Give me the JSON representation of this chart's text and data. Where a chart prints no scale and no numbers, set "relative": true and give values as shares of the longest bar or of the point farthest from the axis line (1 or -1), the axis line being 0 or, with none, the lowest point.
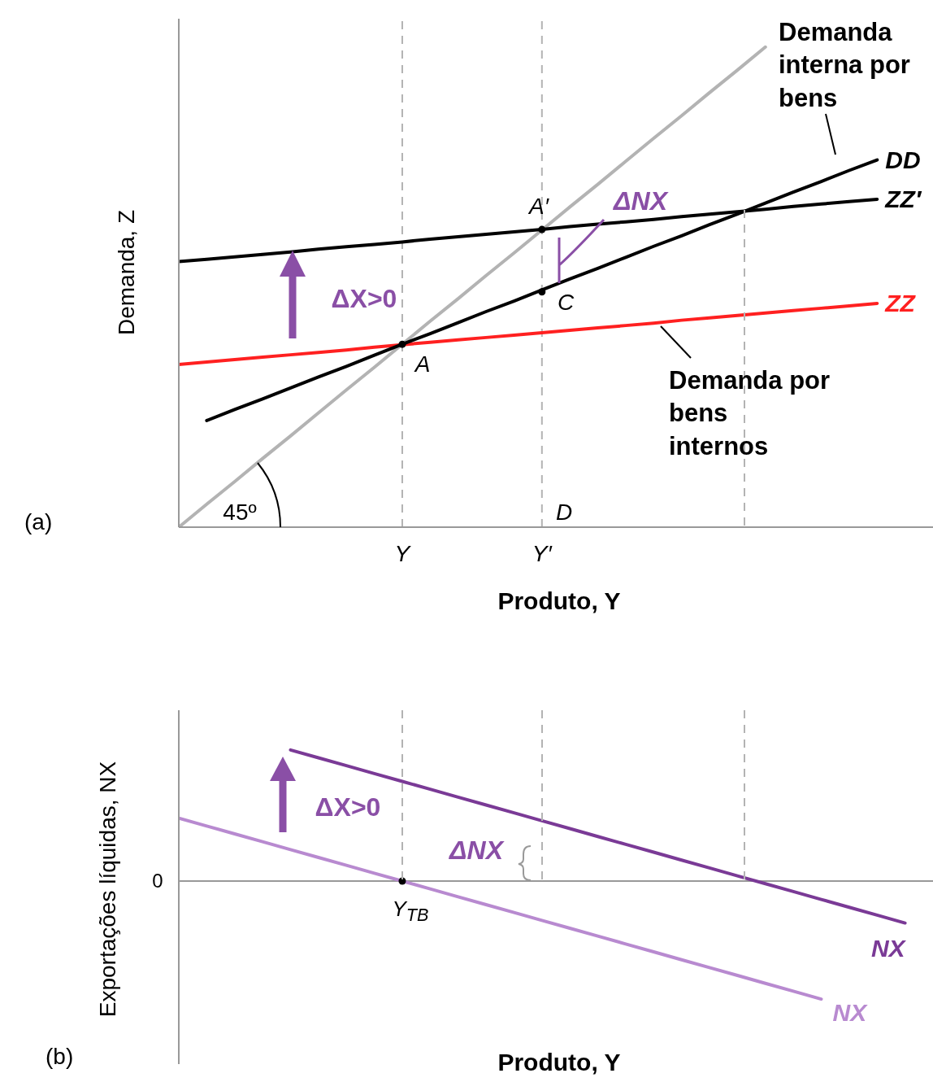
{
  "chart_data": [
    {
      "type": "line",
      "title": "(a)",
      "xlabel": "Produto, Y",
      "ylabel": "Demanda, Z",
      "relative": true,
      "marker": "none",
      "categories": [
        null,
        null,
        null,
        null,
        null,
        null,
        null,
        null,
        "Y",
        null,
        null,
        null,
        null,
        "Y′",
        null,
        null,
        null,
        null,
        null,
        null,
        null,
        null,
        null,
        null,
        null,
        null,
        null,
        null
      ],
      "series": [
        {
          "color": "#b3b3b3",
          "values": [
            0,
            0.048,
            0.095,
            0.143,
            0.19,
            0.238,
            0.286,
            0.333,
            0.381,
            0.429,
            0.476,
            0.524,
            0.571,
            0.619,
            0.667,
            0.714,
            0.762,
            0.81,
            0.857,
            0.905,
            0.952,
            1,
            null,
            null,
            null,
            null,
            null,
            null
          ]
        },
        {
          "name": "ZZ",
          "color": "#ff2020",
          "values": [
            0.339,
            0.344,
            0.349,
            0.354,
            0.359,
            0.364,
            0.369,
            0.375,
            0.38,
            0.385,
            0.39,
            0.395,
            0.4,
            0.405,
            0.41,
            0.415,
            0.42,
            0.425,
            0.431,
            0.436,
            0.441,
            0.446,
            0.451,
            0.456,
            0.461,
            0.466,
            null,
            null
          ]
        },
        {
          "name": "ZZ′",
          "color": "#000000",
          "values": [
            0.553,
            0.558,
            0.563,
            0.568,
            0.573,
            0.579,
            0.584,
            0.589,
            0.594,
            0.6,
            0.605,
            0.61,
            0.615,
            0.62,
            0.626,
            0.631,
            0.636,
            0.641,
            0.647,
            0.652,
            0.657,
            0.662,
            0.668,
            0.673,
            0.678,
            0.683,
            null,
            null
          ]
        },
        {
          "name": "DD",
          "color": "#000000",
          "values": [
            null,
            0.222,
            0.245,
            0.267,
            0.29,
            0.313,
            0.335,
            0.358,
            0.381,
            0.403,
            0.426,
            0.449,
            0.471,
            0.494,
            0.517,
            0.539,
            0.562,
            0.585,
            0.607,
            0.63,
            0.652,
            0.675,
            0.698,
            0.72,
            0.743,
            0.765,
            null,
            null
          ]
        },
        {
          "type": "scatter",
          "marker": "circle",
          "color": "#000000",
          "values": [
            null,
            null,
            null,
            null,
            null,
            null,
            null,
            null,
            0.381,
            null,
            null,
            null,
            null,
            0.62,
            null,
            null,
            null,
            null,
            null,
            null,
            null,
            null,
            null,
            null,
            null,
            null,
            null,
            null
          ]
        },
        {
          "type": "scatter",
          "marker": "circle",
          "color": "#000000",
          "values": [
            null,
            null,
            null,
            null,
            null,
            null,
            null,
            null,
            null,
            null,
            null,
            null,
            null,
            0.49,
            null,
            null,
            null,
            null,
            null,
            null,
            null,
            null,
            null,
            null,
            null,
            null,
            null,
            null
          ]
        }
      ],
      "ref_lines": [
        {
          "axis": "x",
          "value": "Y",
          "color": "#b3b3b3",
          "line_style": "dashed"
        },
        {
          "axis": "x",
          "value": "Y′",
          "color": "#b3b3b3",
          "line_style": "dashed"
        }
      ],
      "annotations": [
        "A",
        "A′",
        "C",
        "D",
        "45º",
        "ΔNX",
        "ΔX>0",
        "Demanda interna por bens",
        "Demanda por bens internos"
      ]
    },
    {
      "type": "line",
      "title": "(b)",
      "xlabel": "Produto, Y",
      "ylabel": "Exportações líquidas, NX",
      "relative": true,
      "marker": "none",
      "categories": [
        null,
        null,
        null,
        null,
        null,
        null,
        null,
        null,
        null,
        null,
        null,
        null,
        null,
        null,
        null,
        null,
        null,
        null,
        null,
        null,
        null,
        null,
        null,
        null,
        null,
        null,
        null,
        null
      ],
      "series": [
        {
          "name": "NX",
          "color": "#7a3a96",
          "values": [
            null,
            null,
            null,
            null,
            1,
            0.94,
            0.88,
            0.82,
            0.76,
            0.7,
            0.64,
            0.58,
            0.52,
            0.46,
            0.4,
            0.34,
            0.28,
            0.22,
            0.16,
            0.1,
            0.04,
            -0.02,
            -0.08,
            -0.14,
            -0.2,
            -0.26,
            -0.32,
            null
          ]
        },
        {
          "name": "NX",
          "color": "#b88ad0",
          "values": [
            0.48,
            0.42,
            0.36,
            0.3,
            0.24,
            0.18,
            0.12,
            0.06,
            0,
            -0.06,
            -0.12,
            -0.18,
            -0.24,
            -0.3,
            -0.36,
            -0.42,
            -0.48,
            -0.54,
            -0.6,
            -0.66,
            -0.72,
            -0.78,
            -0.84,
            -0.9,
            null,
            null,
            null,
            null
          ]
        },
        {
          "type": "scatter",
          "marker": "circle",
          "color": "#000000",
          "values": [
            null,
            null,
            null,
            null,
            null,
            null,
            null,
            null,
            0,
            null,
            null,
            null,
            null,
            null,
            null,
            null,
            null,
            null,
            null,
            null,
            null,
            null,
            null,
            null,
            null,
            null,
            null,
            null
          ]
        }
      ],
      "annotations": [
        "ΔX>0",
        "ΔNX",
        "Y$_{TB}$",
        "0"
      ]
    }
  ]
}
